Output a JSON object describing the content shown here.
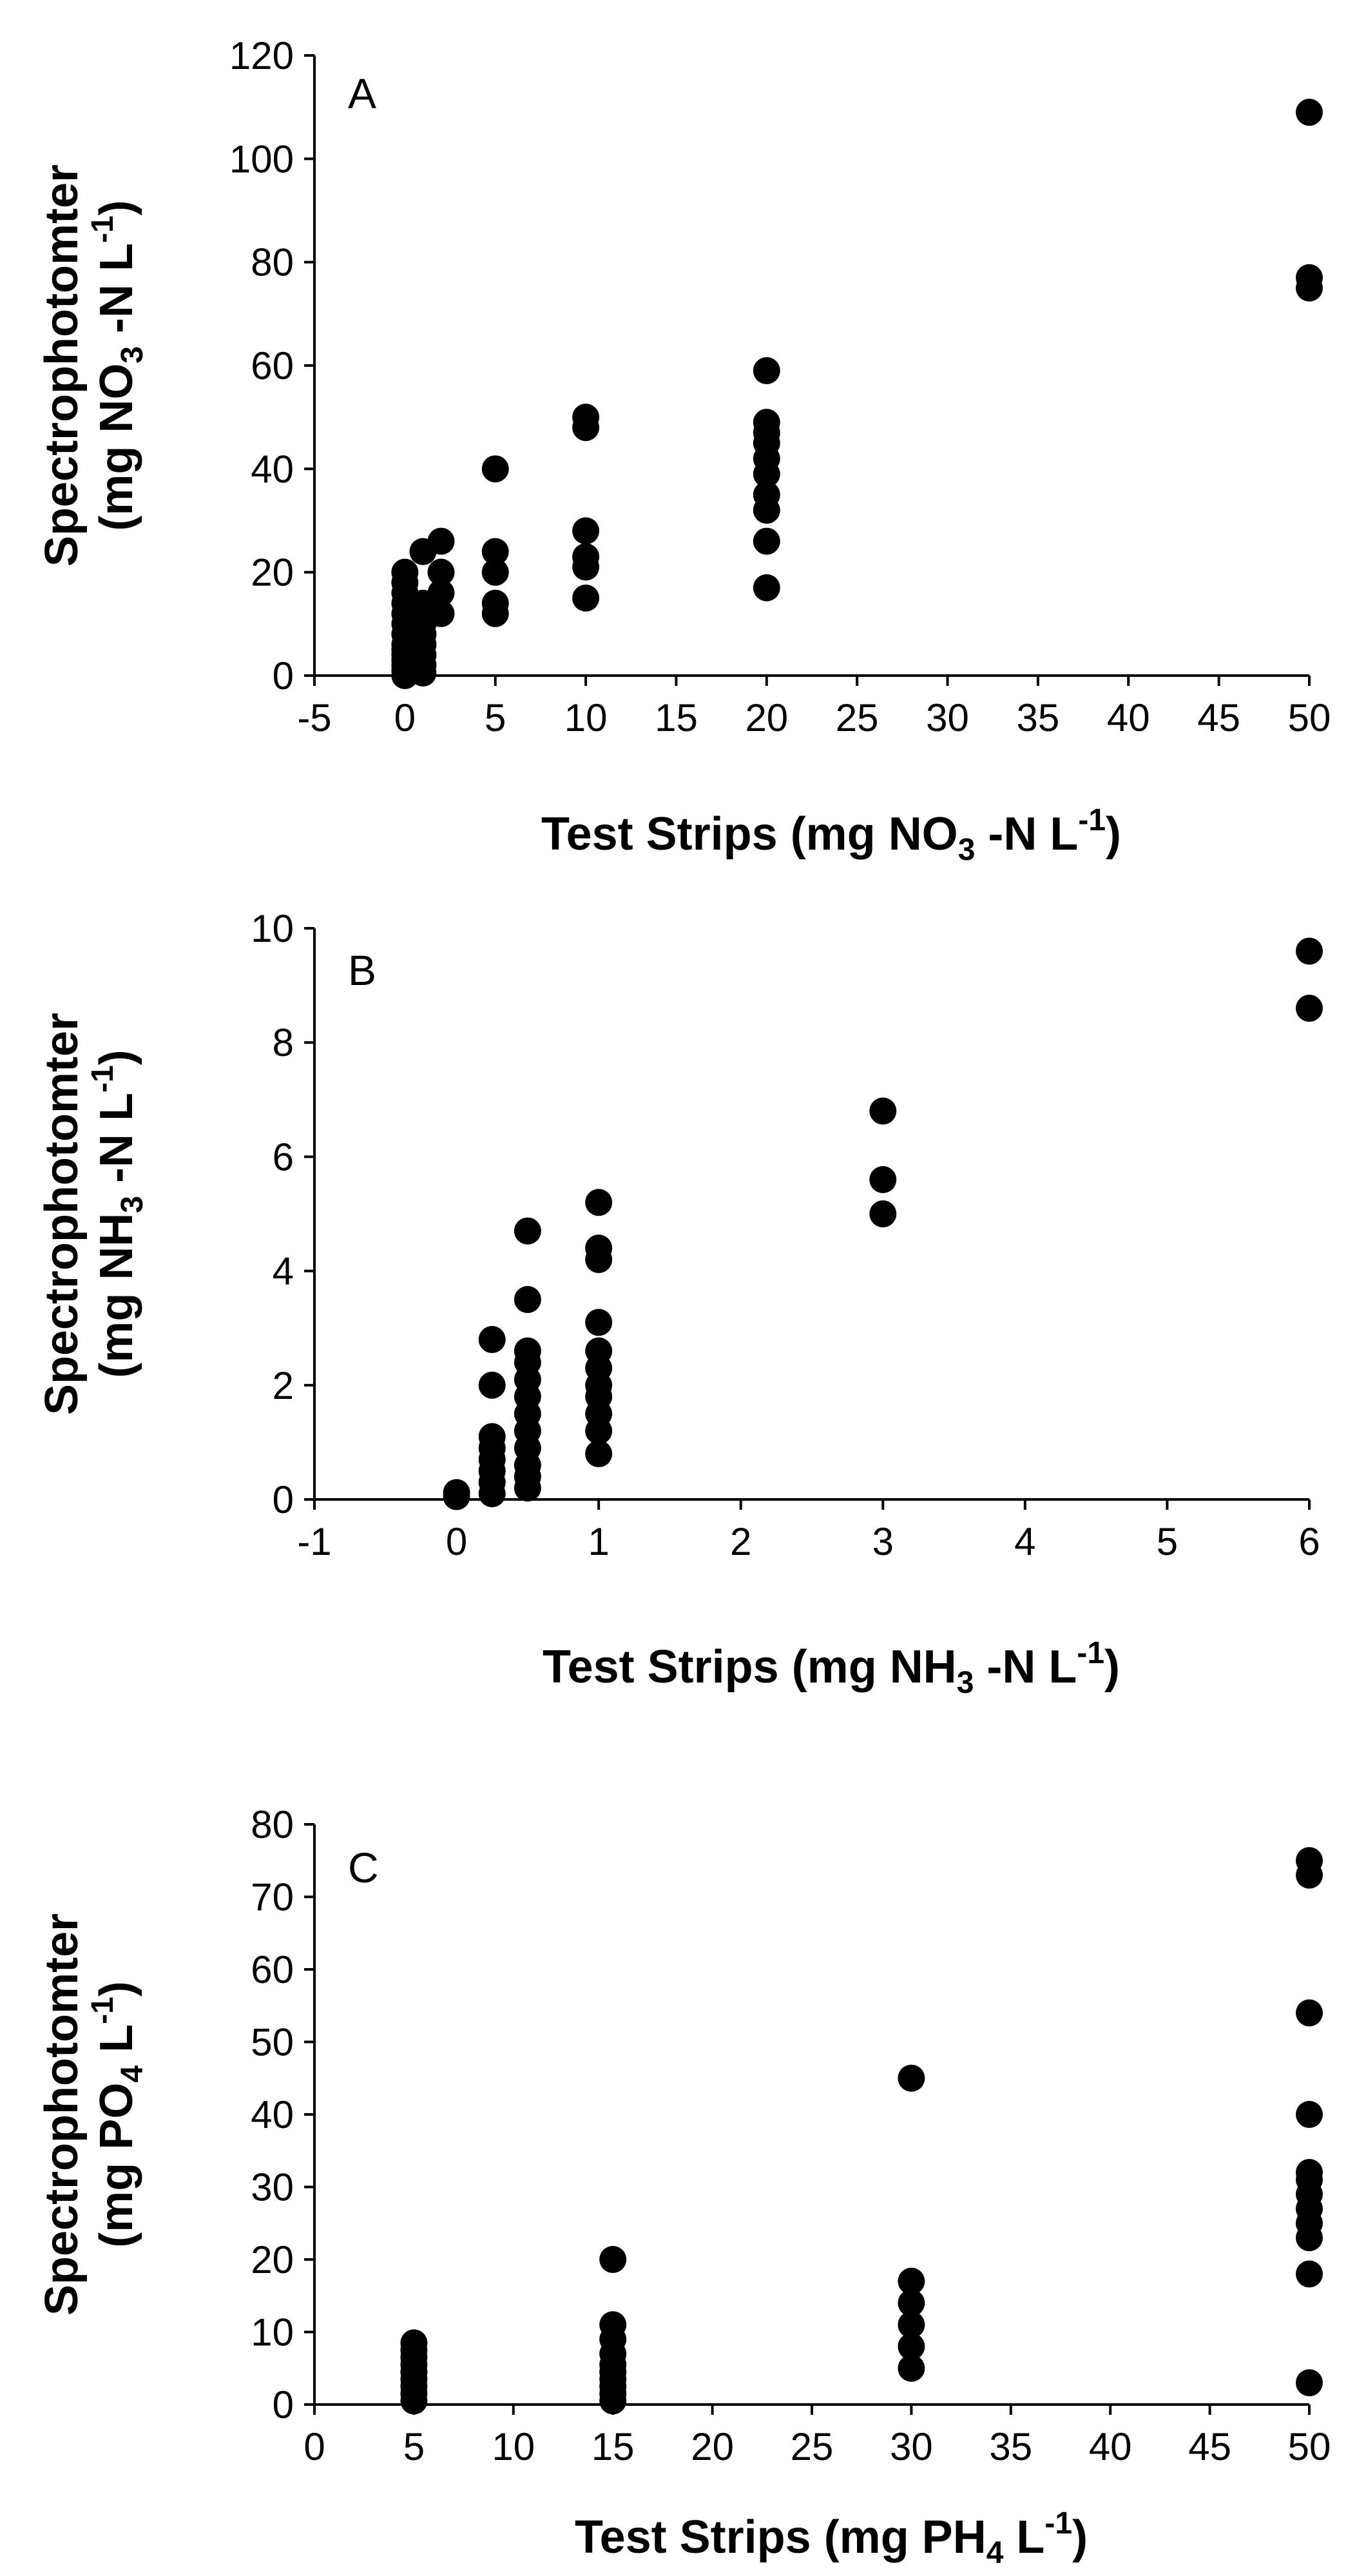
{
  "chart_data": [
    {
      "type": "scatter",
      "panel_label": "A",
      "title": "",
      "xlabel": "Test Strips (mg NO3 -N L-1)",
      "ylabel": "Spectrophotomter (mg NO3 -N L-1)",
      "xlim": [
        -5,
        50
      ],
      "ylim": [
        0,
        120
      ],
      "xticks": [
        -5,
        0,
        5,
        10,
        15,
        20,
        25,
        30,
        35,
        40,
        45,
        50
      ],
      "yticks": [
        0,
        20,
        40,
        60,
        80,
        100,
        120
      ],
      "grid": false,
      "legend": "none",
      "marker_color": "#000000",
      "series": [
        {
          "points": [
            [
              0,
              0
            ],
            [
              0,
              1
            ],
            [
              0,
              2
            ],
            [
              0,
              3
            ],
            [
              0,
              4
            ],
            [
              0,
              5
            ],
            [
              0,
              6
            ],
            [
              0,
              8
            ],
            [
              0,
              10
            ],
            [
              0,
              12
            ],
            [
              0,
              14
            ],
            [
              0,
              16
            ],
            [
              0,
              18
            ],
            [
              0,
              20
            ],
            [
              1,
              0.5
            ],
            [
              1,
              2
            ],
            [
              1,
              4
            ],
            [
              1,
              6
            ],
            [
              1,
              8
            ],
            [
              1,
              10
            ],
            [
              1,
              12
            ],
            [
              1,
              14
            ],
            [
              1,
              24
            ],
            [
              2,
              12
            ],
            [
              2,
              16
            ],
            [
              2,
              20
            ],
            [
              2,
              26
            ],
            [
              5,
              12
            ],
            [
              5,
              14
            ],
            [
              5,
              20
            ],
            [
              5,
              24
            ],
            [
              5,
              40
            ],
            [
              10,
              15
            ],
            [
              10,
              21
            ],
            [
              10,
              23
            ],
            [
              10,
              28
            ],
            [
              10,
              48
            ],
            [
              10,
              50
            ],
            [
              20,
              17
            ],
            [
              20,
              26
            ],
            [
              20,
              32
            ],
            [
              20,
              35
            ],
            [
              20,
              39
            ],
            [
              20,
              42
            ],
            [
              20,
              45
            ],
            [
              20,
              47
            ],
            [
              20,
              49
            ],
            [
              20,
              59
            ],
            [
              50,
              75
            ],
            [
              50,
              77
            ],
            [
              50,
              109
            ]
          ]
        }
      ]
    },
    {
      "type": "scatter",
      "panel_label": "B",
      "title": "",
      "xlabel": "Test Strips (mg NH3 -N L-1)",
      "ylabel": "Spectrophotomter (mg NH3 -N L-1)",
      "xlim": [
        -1,
        6
      ],
      "ylim": [
        0,
        10
      ],
      "xticks": [
        -1,
        0,
        1,
        2,
        3,
        4,
        5,
        6
      ],
      "yticks": [
        0,
        2,
        4,
        6,
        8,
        10
      ],
      "grid": false,
      "legend": "none",
      "marker_color": "#000000",
      "series": [
        {
          "points": [
            [
              0,
              0.05
            ],
            [
              0,
              0.12
            ],
            [
              0.25,
              0.1
            ],
            [
              0.25,
              0.3
            ],
            [
              0.25,
              0.5
            ],
            [
              0.25,
              0.7
            ],
            [
              0.25,
              0.9
            ],
            [
              0.25,
              1.1
            ],
            [
              0.25,
              2.0
            ],
            [
              0.25,
              2.8
            ],
            [
              0.5,
              0.2
            ],
            [
              0.5,
              0.4
            ],
            [
              0.5,
              0.6
            ],
            [
              0.5,
              0.9
            ],
            [
              0.5,
              1.2
            ],
            [
              0.5,
              1.5
            ],
            [
              0.5,
              1.8
            ],
            [
              0.5,
              2.1
            ],
            [
              0.5,
              2.4
            ],
            [
              0.5,
              2.6
            ],
            [
              0.5,
              3.5
            ],
            [
              0.5,
              4.7
            ],
            [
              1,
              0.8
            ],
            [
              1,
              1.2
            ],
            [
              1,
              1.5
            ],
            [
              1,
              1.8
            ],
            [
              1,
              2.0
            ],
            [
              1,
              2.3
            ],
            [
              1,
              2.6
            ],
            [
              1,
              3.1
            ],
            [
              1,
              4.2
            ],
            [
              1,
              4.4
            ],
            [
              1,
              5.2
            ],
            [
              3,
              5.0
            ],
            [
              3,
              5.6
            ],
            [
              3,
              6.8
            ],
            [
              6,
              8.6
            ],
            [
              6,
              9.6
            ]
          ]
        }
      ]
    },
    {
      "type": "scatter",
      "panel_label": "C",
      "title": "",
      "xlabel": "Test Strips (mg PH4 L-1)",
      "ylabel": "Spectrophotomter (mg PO4 L-1)",
      "xlim": [
        0,
        50
      ],
      "ylim": [
        0,
        80
      ],
      "xticks": [
        0,
        5,
        10,
        15,
        20,
        25,
        30,
        35,
        40,
        45,
        50
      ],
      "yticks": [
        0,
        10,
        20,
        30,
        40,
        50,
        60,
        70,
        80
      ],
      "grid": false,
      "legend": "none",
      "marker_color": "#000000",
      "series": [
        {
          "points": [
            [
              5,
              0.5
            ],
            [
              5,
              1.5
            ],
            [
              5,
              2.5
            ],
            [
              5,
              3.5
            ],
            [
              5,
              4.5
            ],
            [
              5,
              5.5
            ],
            [
              5,
              6.5
            ],
            [
              5,
              7.5
            ],
            [
              5,
              8.5
            ],
            [
              15,
              0.5
            ],
            [
              15,
              1.5
            ],
            [
              15,
              2.5
            ],
            [
              15,
              3.5
            ],
            [
              15,
              4.5
            ],
            [
              15,
              5.5
            ],
            [
              15,
              7
            ],
            [
              15,
              9
            ],
            [
              15,
              11
            ],
            [
              15,
              20
            ],
            [
              30,
              5
            ],
            [
              30,
              8
            ],
            [
              30,
              11
            ],
            [
              30,
              14
            ],
            [
              30,
              17
            ],
            [
              30,
              45
            ],
            [
              50,
              3
            ],
            [
              50,
              18
            ],
            [
              50,
              23
            ],
            [
              50,
              25
            ],
            [
              50,
              27
            ],
            [
              50,
              29
            ],
            [
              50,
              31
            ],
            [
              50,
              32
            ],
            [
              50,
              40
            ],
            [
              50,
              54
            ],
            [
              50,
              73
            ],
            [
              50,
              75
            ]
          ]
        }
      ]
    }
  ]
}
